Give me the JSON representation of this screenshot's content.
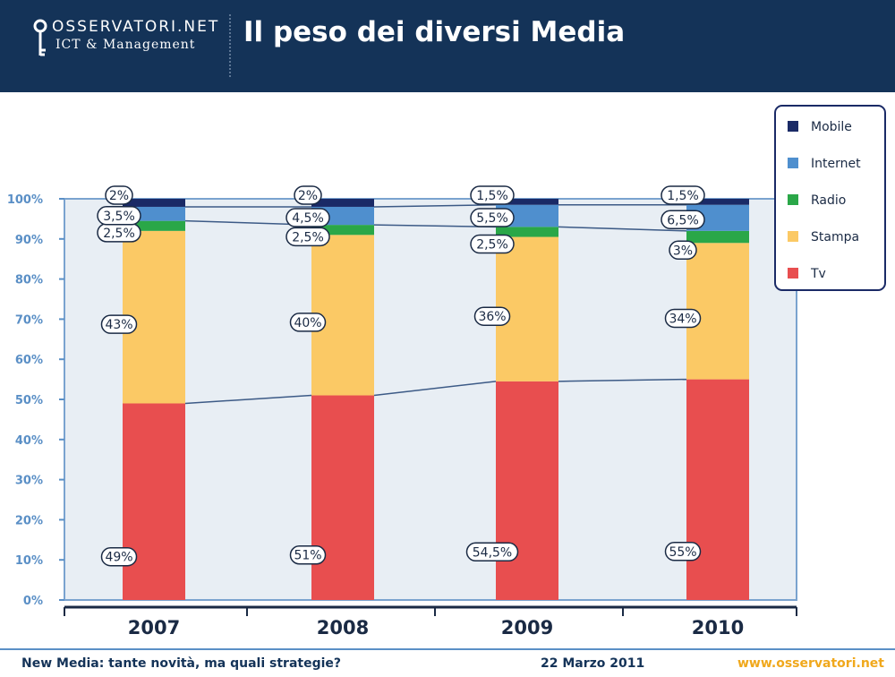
{
  "header": {
    "logo_top": "OSSERVATORI.NET",
    "logo_sub": "ICT & Management",
    "title": "Il peso dei diversi Media"
  },
  "footer": {
    "left": "New Media: tante novità, ma quali strategie?",
    "date": "22 Marzo 2011",
    "url": "www.osservatori.net"
  },
  "chart_data": {
    "type": "bar",
    "stacked": true,
    "categories": [
      "2007",
      "2008",
      "2009",
      "2010"
    ],
    "series": [
      {
        "name": "Tv",
        "color": "#e84e4f",
        "values": [
          49,
          51,
          54.5,
          55
        ],
        "labels": [
          "49%",
          "51%",
          "54,5%",
          "55%"
        ]
      },
      {
        "name": "Stampa",
        "color": "#fbc965",
        "values": [
          43,
          40,
          36,
          34
        ],
        "labels": [
          "43%",
          "40%",
          "36%",
          "34%"
        ]
      },
      {
        "name": "Radio",
        "color": "#2aa748",
        "values": [
          2.5,
          2.5,
          2.5,
          3
        ],
        "labels": [
          "2,5%",
          "2,5%",
          "2,5%",
          "3%"
        ]
      },
      {
        "name": "Internet",
        "color": "#4f8fce",
        "values": [
          3.5,
          4.5,
          5.5,
          6.5
        ],
        "labels": [
          "3,5%",
          "4,5%",
          "5,5%",
          "6,5%"
        ]
      },
      {
        "name": "Mobile",
        "color": "#1a2a66",
        "values": [
          2,
          2,
          1.5,
          1.5
        ],
        "labels": [
          "2%",
          "2%",
          "1,5%",
          "1,5%"
        ]
      }
    ],
    "legend_order": [
      "Mobile",
      "Internet",
      "Radio",
      "Stampa",
      "Tv"
    ],
    "yticks": [
      "0%",
      "10%",
      "20%",
      "30%",
      "40%",
      "50%",
      "60%",
      "70%",
      "80%",
      "90%",
      "100%"
    ],
    "ylim": [
      0,
      100
    ],
    "legend_position": "top-right"
  }
}
